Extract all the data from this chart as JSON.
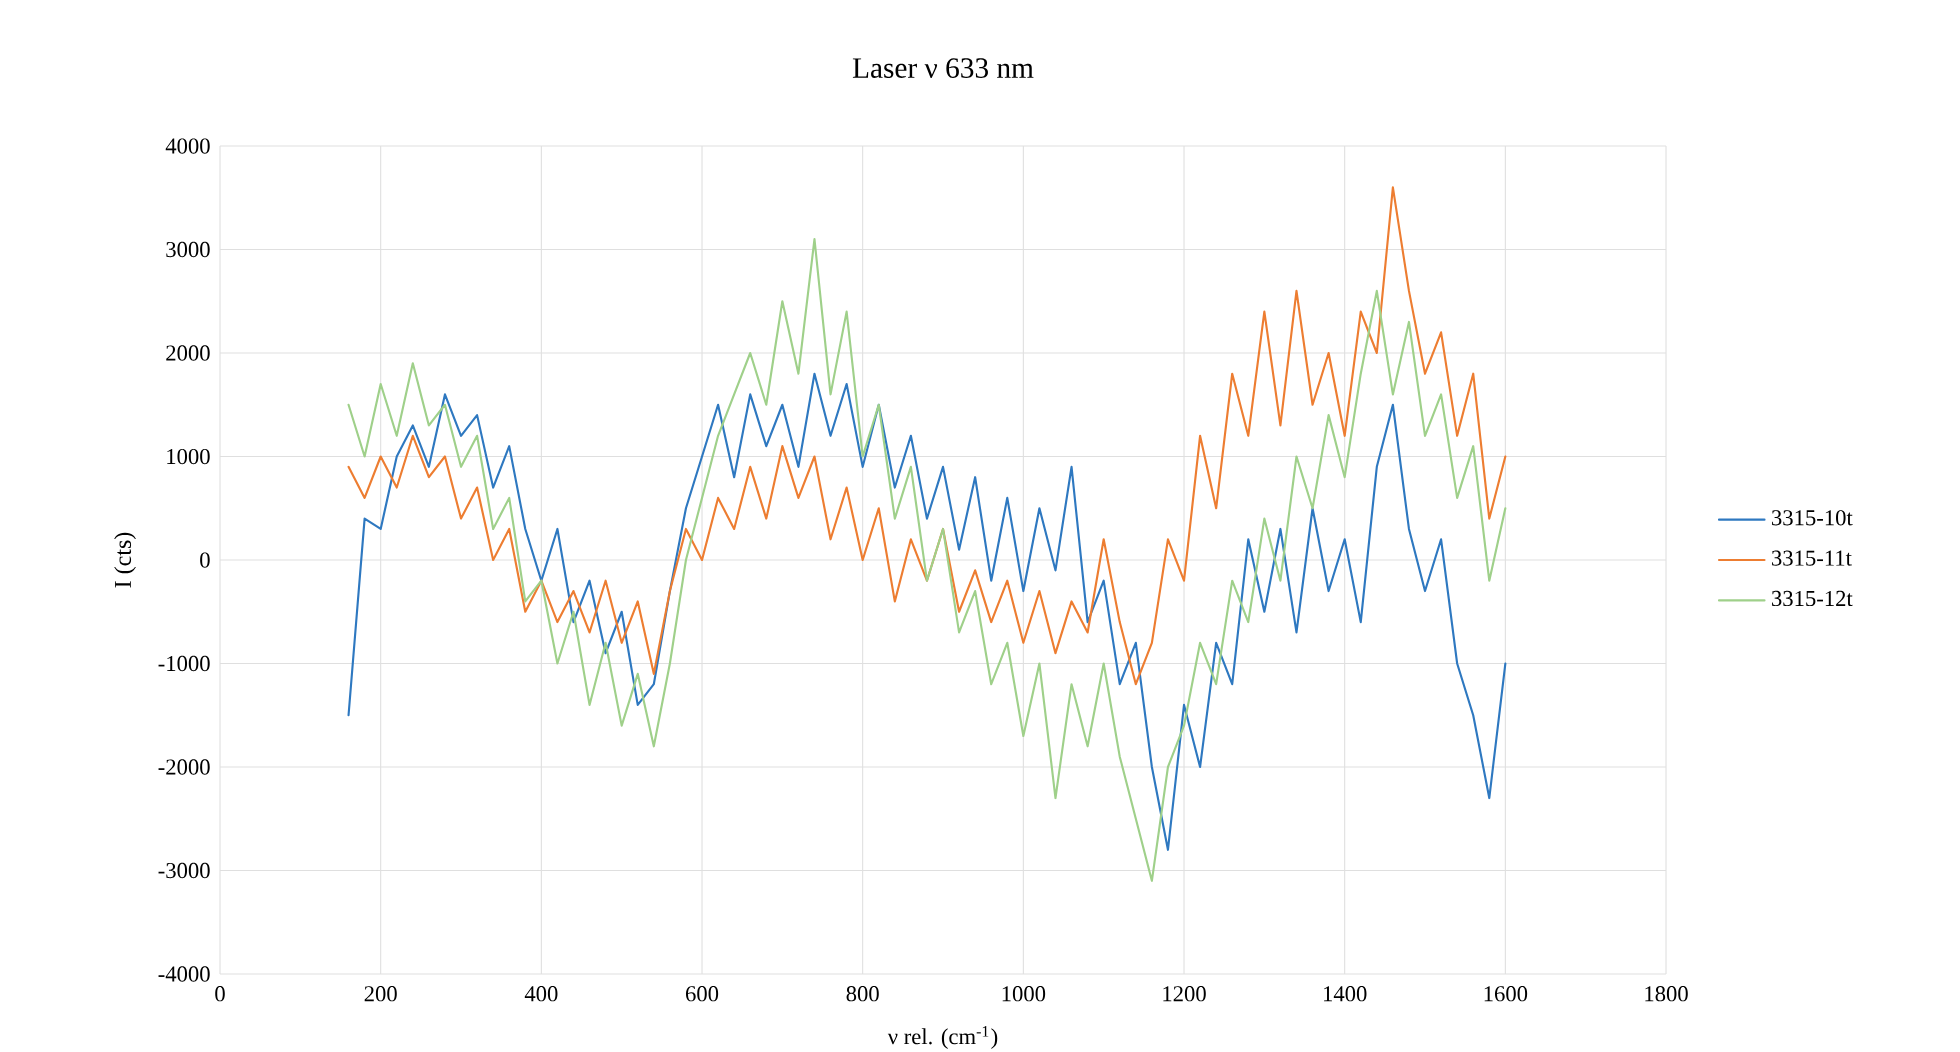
{
  "chart_data": {
    "type": "line",
    "title": "Laser ν 633 nm",
    "xlabel": "ν rel. (cm$^{-1}$)",
    "ylabel": "I (cts)",
    "x": [
      160,
      180,
      200,
      220,
      240,
      260,
      280,
      300,
      320,
      340,
      360,
      380,
      400,
      420,
      440,
      460,
      480,
      500,
      520,
      540,
      560,
      580,
      600,
      620,
      640,
      660,
      680,
      700,
      720,
      740,
      760,
      780,
      800,
      820,
      840,
      860,
      880,
      900,
      920,
      940,
      960,
      980,
      1000,
      1020,
      1040,
      1060,
      1080,
      1100,
      1120,
      1140,
      1160,
      1180,
      1200,
      1220,
      1240,
      1260,
      1280,
      1300,
      1320,
      1340,
      1360,
      1380,
      1400,
      1420,
      1440,
      1460,
      1480,
      1500,
      1520,
      1540,
      1560,
      1580,
      1600
    ],
    "series": [
      {
        "name": "3315-10t",
        "color": "#2e78c0",
        "values": [
          -1500,
          400,
          300,
          1000,
          1300,
          900,
          1600,
          1200,
          1400,
          700,
          1100,
          300,
          -200,
          300,
          -600,
          -200,
          -900,
          -500,
          -1400,
          -1200,
          -300,
          500,
          1000,
          1500,
          800,
          1600,
          1100,
          1500,
          900,
          1800,
          1200,
          1700,
          900,
          1500,
          700,
          1200,
          400,
          900,
          100,
          800,
          -200,
          600,
          -300,
          500,
          -100,
          900,
          -600,
          -200,
          -1200,
          -800,
          -2000,
          -2800,
          -1400,
          -2000,
          -800,
          -1200,
          200,
          -500,
          300,
          -700,
          500,
          -300,
          200,
          -600,
          900,
          1500,
          300,
          -300,
          200,
          -1000,
          -1500,
          -2300,
          -1000
        ]
      },
      {
        "name": "3315-11t",
        "color": "#ed7d31",
        "values": [
          900,
          600,
          1000,
          700,
          1200,
          800,
          1000,
          400,
          700,
          0,
          300,
          -500,
          -200,
          -600,
          -300,
          -700,
          -200,
          -800,
          -400,
          -1100,
          -300,
          300,
          0,
          600,
          300,
          900,
          400,
          1100,
          600,
          1000,
          200,
          700,
          0,
          500,
          -400,
          200,
          -200,
          300,
          -500,
          -100,
          -600,
          -200,
          -800,
          -300,
          -900,
          -400,
          -700,
          200,
          -600,
          -1200,
          -800,
          200,
          -200,
          1200,
          500,
          1800,
          1200,
          2400,
          1300,
          2600,
          1500,
          2000,
          1200,
          2400,
          2000,
          3600,
          2600,
          1800,
          2200,
          1200,
          1800,
          400,
          1000
        ]
      },
      {
        "name": "3315-12t",
        "color": "#9fd08a",
        "values": [
          1500,
          1000,
          1700,
          1200,
          1900,
          1300,
          1500,
          900,
          1200,
          300,
          600,
          -400,
          -200,
          -1000,
          -500,
          -1400,
          -800,
          -1600,
          -1100,
          -1800,
          -1000,
          0,
          600,
          1200,
          1600,
          2000,
          1500,
          2500,
          1800,
          3100,
          1600,
          2400,
          1000,
          1500,
          400,
          900,
          -200,
          300,
          -700,
          -300,
          -1200,
          -800,
          -1700,
          -1000,
          -2300,
          -1200,
          -1800,
          -1000,
          -1900,
          -2500,
          -3100,
          -2000,
          -1600,
          -800,
          -1200,
          -200,
          -600,
          400,
          -200,
          1000,
          500,
          1400,
          800,
          1800,
          2600,
          1600,
          2300,
          1200,
          1600,
          600,
          1100,
          -200,
          500
        ]
      }
    ],
    "xlim": [
      0,
      1800
    ],
    "xticks": [
      0,
      200,
      400,
      600,
      800,
      1000,
      1200,
      1400,
      1600,
      1800
    ],
    "ylim": [
      -4000,
      4000
    ],
    "yticks": [
      -4000,
      -3000,
      -2000,
      -1000,
      0,
      1000,
      2000,
      3000,
      4000
    ],
    "grid": true,
    "legend": "right",
    "marker": "none",
    "line_style": "solid"
  }
}
